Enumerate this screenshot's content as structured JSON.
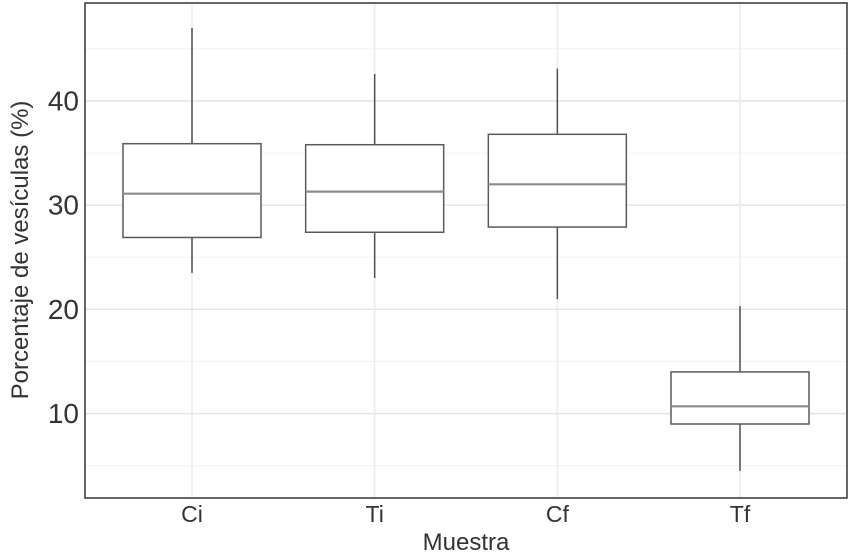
{
  "figure": {
    "background": "#ffffff"
  },
  "chart_data": {
    "type": "boxplot",
    "title": "",
    "xlabel": "Muestra",
    "ylabel": "Porcentaje de vesículas (%)",
    "categories": [
      "Ci",
      "Ti",
      "Cf",
      "Tf"
    ],
    "boxes": [
      {
        "category": "Ci",
        "whisker_low": 23.5,
        "q1": 26.9,
        "median": 31.1,
        "q3": 35.9,
        "whisker_high": 47.0
      },
      {
        "category": "Ti",
        "whisker_low": 23.0,
        "q1": 27.4,
        "median": 31.3,
        "q3": 35.8,
        "whisker_high": 42.6
      },
      {
        "category": "Cf",
        "whisker_low": 21.0,
        "q1": 27.9,
        "median": 32.0,
        "q3": 36.8,
        "whisker_high": 43.1
      },
      {
        "category": "Tf",
        "whisker_low": 4.5,
        "q1": 9.0,
        "median": 10.7,
        "q3": 14.0,
        "whisker_high": 20.3
      }
    ],
    "ylim": [
      1.9,
      49.4
    ],
    "ytick_values": [
      10,
      20,
      30,
      40
    ],
    "ytick_labels": [
      "10",
      "20",
      "30",
      "40"
    ],
    "yminor_values": [
      5,
      15,
      25,
      35,
      45
    ],
    "grid": "on",
    "legend": "none",
    "colors": {
      "background": "#ffffff",
      "panel_border": "#333333",
      "grid_major": "#e4e4e4",
      "grid_minor": "#f2f2f2",
      "grid_vertical": "#ececec",
      "box_fill": "#ffffff",
      "box_stroke": "#5a5a5a",
      "median_stroke": "#8a8a8a",
      "whisker_stroke": "#4f4f4f",
      "text": "#333333"
    }
  }
}
